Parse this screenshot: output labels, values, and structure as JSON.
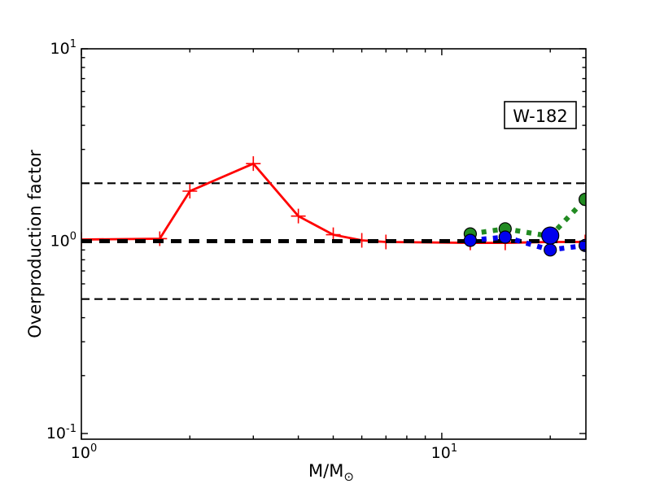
{
  "chart_data": {
    "type": "line",
    "title": "",
    "annotation": {
      "label": "W-182"
    },
    "xlabel": "M/M⊙",
    "xlabel_parts": {
      "main": "M/M",
      "sub": "⊙"
    },
    "ylabel": "Overproduction factor",
    "xscale": "log",
    "yscale": "log",
    "xlim": [
      1,
      25
    ],
    "ylim": [
      0.1,
      10
    ],
    "grid": false,
    "x_axis": {
      "major": [
        {
          "value": 1,
          "base": "10",
          "exp": "0"
        },
        {
          "value": 10,
          "base": "10",
          "exp": "1"
        }
      ],
      "minor": [
        2,
        3,
        4,
        5,
        6,
        7,
        8,
        9,
        20
      ]
    },
    "y_axis": {
      "major": [
        {
          "value": 10,
          "base": "10",
          "exp": "1"
        },
        {
          "value": 1,
          "base": "10",
          "exp": "0"
        },
        {
          "value": 0.1,
          "base": "10",
          "exp": "-1"
        }
      ],
      "minor": [
        0.2,
        0.3,
        0.4,
        0.5,
        0.6,
        0.7,
        0.8,
        0.9,
        2,
        3,
        4,
        5,
        6,
        7,
        8,
        9
      ]
    },
    "reference_lines": [
      {
        "y": 2.0,
        "color": "#000000",
        "style": "dashed-thin",
        "layer": 0
      },
      {
        "y": 0.5,
        "color": "#000000",
        "style": "dashed-thin",
        "layer": 0
      },
      {
        "y": 1.0,
        "color": "#000000",
        "style": "dashed-thick",
        "layer": 2
      }
    ],
    "series": [
      {
        "name": "red-plus-series",
        "color": "#ff0000",
        "line_style": "solid",
        "marker": "plus",
        "layer": 1,
        "points": [
          [
            1,
            1.02
          ],
          [
            1.65,
            1.03
          ],
          [
            2,
            1.82
          ],
          [
            3,
            2.53
          ],
          [
            4,
            1.35
          ],
          [
            5,
            1.08
          ],
          [
            6,
            1.01
          ],
          [
            7,
            0.99
          ],
          [
            12,
            0.98
          ],
          [
            15,
            0.98
          ],
          [
            20,
            0.99
          ],
          [
            25,
            0.99
          ]
        ]
      },
      {
        "name": "green-circle-series",
        "color": "#228B22",
        "line_style": "dotted",
        "marker": "circle",
        "layer": 3,
        "points": [
          [
            12,
            1.09
          ],
          [
            15,
            1.16
          ],
          [
            20,
            1.06
          ],
          [
            25,
            1.65
          ]
        ]
      },
      {
        "name": "blue-circle-series",
        "color": "#0000ee",
        "line_style": "dotted",
        "marker": "circle",
        "layer": 4,
        "points": [
          [
            12,
            1.01
          ],
          [
            15,
            1.05
          ],
          [
            20,
            0.9
          ],
          [
            25,
            0.95
          ]
        ],
        "extra_markers": [
          {
            "x": 20,
            "y": 1.07,
            "marker": "circle-large"
          }
        ]
      }
    ]
  }
}
